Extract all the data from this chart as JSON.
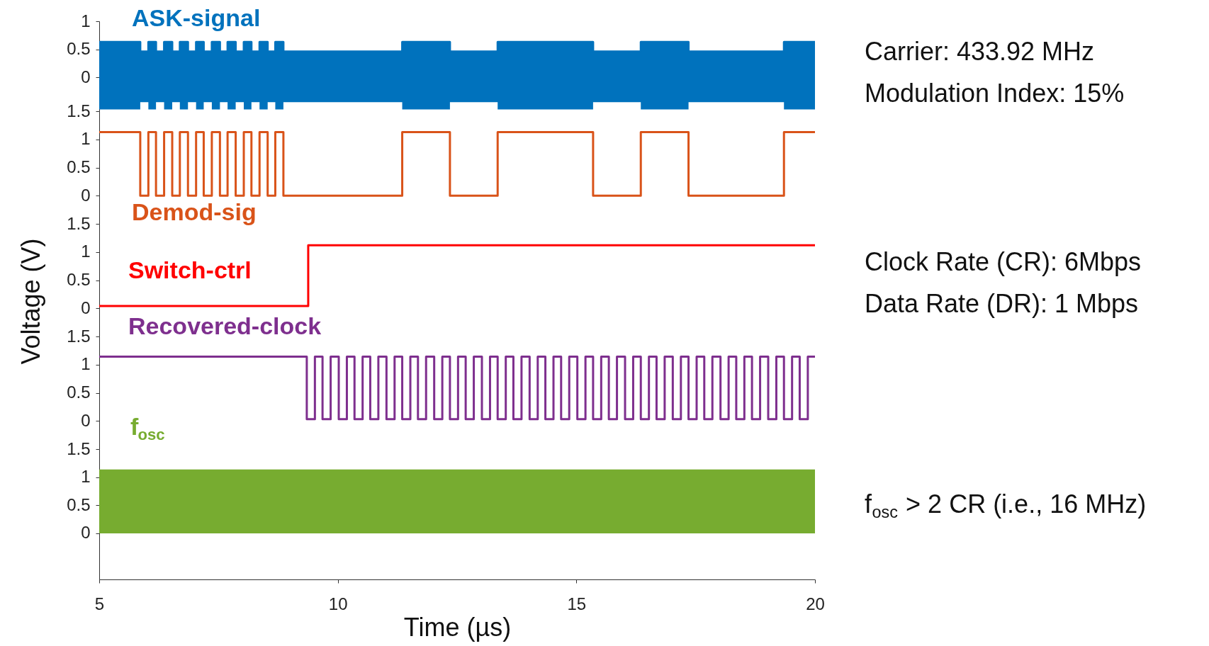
{
  "chart_data": [
    {
      "type": "line",
      "xlim": [
        5,
        20
      ],
      "ylim": [
        -0.6,
        1.0
      ],
      "yticks": [
        0,
        0.5,
        1
      ],
      "tick_labels": "y",
      "series": [
        {
          "name": "ASK-signal",
          "color": "#0072bd",
          "upper": [
            0.63,
            0.63,
            0.46,
            0.46,
            0.63,
            0.63,
            0.46,
            0.46,
            0.63,
            0.63,
            0.46,
            0.46,
            0.63,
            0.63,
            0.46,
            0.46,
            0.63,
            0.63,
            0.46,
            0.46,
            0.63,
            0.63,
            0.46,
            0.46,
            0.63,
            0.63,
            0.46,
            0.46,
            0.63,
            0.63,
            0.46,
            0.46,
            0.63,
            0.63,
            0.46,
            0.46,
            0.63,
            0.63,
            0.46,
            0.46,
            0.63,
            0.63,
            0.46,
            0.46,
            0.63,
            0.63,
            0.46,
            0.46,
            0.63,
            0.63,
            0.46,
            0.46,
            0.63,
            0.63
          ],
          "x": [
            5,
            5.86,
            5.86,
            6.03,
            6.03,
            6.19,
            6.19,
            6.36,
            6.36,
            6.53,
            6.53,
            6.69,
            6.69,
            6.86,
            6.86,
            7.03,
            7.03,
            7.19,
            7.19,
            7.36,
            7.36,
            7.53,
            7.53,
            7.69,
            7.69,
            7.86,
            7.86,
            8.03,
            8.03,
            8.19,
            8.19,
            8.36,
            8.36,
            8.53,
            8.53,
            8.69,
            8.69,
            8.86,
            8.86,
            11.35,
            11.35,
            12.35,
            12.35,
            13.35,
            13.35,
            15.35,
            15.35,
            16.35,
            16.35,
            17.35,
            17.35,
            19.35,
            19.35,
            20
          ],
          "values": [
            0.63,
            0.63,
            0.46,
            0.46,
            0.63,
            0.63,
            0.46,
            0.46,
            0.63,
            0.63,
            0.46,
            0.46,
            0.63,
            0.63,
            0.46,
            0.46,
            0.63,
            0.63,
            0.46,
            0.46,
            0.63,
            0.63,
            0.46,
            0.46,
            0.63,
            0.63,
            0.46,
            0.46,
            0.63,
            0.63,
            0.46,
            0.46,
            0.63,
            0.63,
            0.46,
            0.46,
            0.63,
            0.63,
            0.46,
            0.46,
            0.63,
            0.63,
            0.46,
            0.46,
            0.63,
            0.63,
            0.46,
            0.46,
            0.63,
            0.63,
            0.46,
            0.46,
            0.63,
            0.63
          ],
          "lower": [
            -0.57,
            -0.57,
            -0.44,
            -0.44,
            -0.57,
            -0.57,
            -0.44,
            -0.44,
            -0.57,
            -0.57,
            -0.44,
            -0.44,
            -0.57,
            -0.57,
            -0.44,
            -0.44,
            -0.57,
            -0.57,
            -0.44,
            -0.44,
            -0.57,
            -0.57,
            -0.44,
            -0.44,
            -0.57,
            -0.57,
            -0.44,
            -0.44,
            -0.57,
            -0.57,
            -0.44,
            -0.44,
            -0.57,
            -0.57,
            -0.44,
            -0.44,
            -0.57,
            -0.57,
            -0.44,
            -0.44,
            -0.57,
            -0.57,
            -0.44,
            -0.44,
            -0.57,
            -0.57,
            -0.44,
            -0.44,
            -0.57,
            -0.57,
            -0.44,
            -0.44,
            -0.57,
            -0.57
          ]
        }
      ],
      "annotations": [
        "Carrier: 433.92 MHz",
        "Modulation Index: 15%"
      ]
    },
    {
      "type": "line",
      "xlim": [
        5,
        20
      ],
      "ylim": [
        -0.5,
        1.5
      ],
      "yticks": [
        0,
        0.5,
        1,
        1.5
      ],
      "tick_labels": "y",
      "series": [
        {
          "name": "Demod-sig",
          "color": "#d95319",
          "x": [
            5,
            5.86,
            5.86,
            6.03,
            6.03,
            6.19,
            6.19,
            6.36,
            6.36,
            6.53,
            6.53,
            6.69,
            6.69,
            6.86,
            6.86,
            7.03,
            7.03,
            7.19,
            7.19,
            7.36,
            7.36,
            7.53,
            7.53,
            7.69,
            7.69,
            7.86,
            7.86,
            8.03,
            8.03,
            8.19,
            8.19,
            8.36,
            8.36,
            8.53,
            8.53,
            8.69,
            8.69,
            8.86,
            8.86,
            11.35,
            11.35,
            12.35,
            12.35,
            13.35,
            13.35,
            15.35,
            15.35,
            16.35,
            16.35,
            17.35,
            17.35,
            19.35,
            19.35,
            20
          ],
          "values": [
            1.13,
            1.13,
            0,
            0,
            1.13,
            1.13,
            0,
            0,
            1.13,
            1.13,
            0,
            0,
            1.13,
            1.13,
            0,
            0,
            1.13,
            1.13,
            0,
            0,
            1.13,
            1.13,
            0,
            0,
            1.13,
            1.13,
            0,
            0,
            1.13,
            1.13,
            0,
            0,
            1.13,
            1.13,
            0,
            0,
            1.13,
            1.13,
            0,
            0,
            1.13,
            1.13,
            0,
            0,
            1.13,
            1.13,
            0,
            0,
            1.13,
            1.13,
            0,
            0,
            1.13,
            1.13
          ]
        }
      ]
    },
    {
      "type": "line",
      "xlim": [
        5,
        20
      ],
      "ylim": [
        -0.5,
        1.5
      ],
      "yticks": [
        0,
        0.5,
        1,
        1.5
      ],
      "tick_labels": "y",
      "ylabel": "Voltage (V)",
      "series": [
        {
          "name": "Switch-ctrl",
          "color": "#ff0000",
          "x": [
            5,
            9.38,
            9.38,
            20
          ],
          "values": [
            0.04,
            0.04,
            1.12,
            1.12
          ]
        }
      ],
      "annotations": [
        "Clock Rate (CR): 6Mbps",
        "Data Rate (DR): 1 Mbps"
      ]
    },
    {
      "type": "line",
      "xlim": [
        5,
        20
      ],
      "ylim": [
        -0.5,
        1.5
      ],
      "yticks": [
        0,
        0.5,
        1,
        1.5
      ],
      "tick_labels": "y",
      "series": [
        {
          "name": "Recovered-clock",
          "color": "#7e2f8e",
          "x": [
            5,
            9.35,
            9.35,
            9.52,
            9.52,
            9.68,
            9.68,
            9.85,
            9.85,
            10.02,
            10.02,
            10.19,
            10.19,
            10.35,
            10.35,
            10.52,
            10.52,
            10.68,
            10.68,
            10.85,
            10.85,
            11.02,
            11.02,
            11.19,
            11.19,
            11.35,
            11.35,
            11.52,
            11.52,
            11.68,
            11.68,
            11.85,
            11.85,
            12.02,
            12.02,
            12.19,
            12.19,
            12.35,
            12.35,
            12.52,
            12.52,
            12.68,
            12.68,
            12.85,
            12.85,
            13.02,
            13.02,
            13.19,
            13.19,
            13.35,
            13.35,
            13.52,
            13.52,
            13.68,
            13.68,
            13.85,
            13.85,
            14.02,
            14.02,
            14.19,
            14.19,
            14.35,
            14.35,
            14.52,
            14.52,
            14.68,
            14.68,
            14.85,
            14.85,
            15.02,
            15.02,
            15.19,
            15.19,
            15.35,
            15.35,
            15.52,
            15.52,
            15.68,
            15.68,
            15.85,
            15.85,
            16.02,
            16.02,
            16.19,
            16.19,
            16.35,
            16.35,
            16.52,
            16.52,
            16.68,
            16.68,
            16.85,
            16.85,
            17.02,
            17.02,
            17.19,
            17.19,
            17.35,
            17.35,
            17.52,
            17.52,
            17.68,
            17.68,
            17.85,
            17.85,
            18.02,
            18.02,
            18.19,
            18.19,
            18.35,
            18.35,
            18.52,
            18.52,
            18.68,
            18.68,
            18.85,
            18.85,
            19.02,
            19.02,
            19.19,
            19.19,
            19.35,
            19.35,
            19.52,
            19.52,
            19.68,
            19.68,
            19.85,
            19.85,
            20
          ],
          "values": [
            1.14,
            1.14,
            0.03,
            0.03,
            1.14,
            1.14,
            0.03,
            0.03,
            1.14,
            1.14,
            0.03,
            0.03,
            1.14,
            1.14,
            0.03,
            0.03,
            1.14,
            1.14,
            0.03,
            0.03,
            1.14,
            1.14,
            0.03,
            0.03,
            1.14,
            1.14,
            0.03,
            0.03,
            1.14,
            1.14,
            0.03,
            0.03,
            1.14,
            1.14,
            0.03,
            0.03,
            1.14,
            1.14,
            0.03,
            0.03,
            1.14,
            1.14,
            0.03,
            0.03,
            1.14,
            1.14,
            0.03,
            0.03,
            1.14,
            1.14,
            0.03,
            0.03,
            1.14,
            1.14,
            0.03,
            0.03,
            1.14,
            1.14,
            0.03,
            0.03,
            1.14,
            1.14,
            0.03,
            0.03,
            1.14,
            1.14,
            0.03,
            0.03,
            1.14,
            1.14,
            0.03,
            0.03,
            1.14,
            1.14,
            0.03,
            0.03,
            1.14,
            1.14,
            0.03,
            0.03,
            1.14,
            1.14,
            0.03,
            0.03,
            1.14,
            1.14,
            0.03,
            0.03,
            1.14,
            1.14,
            0.03,
            0.03,
            1.14,
            1.14,
            0.03,
            0.03,
            1.14,
            1.14,
            0.03,
            0.03,
            1.14,
            1.14,
            0.03,
            0.03,
            1.14,
            1.14,
            0.03,
            0.03,
            1.14,
            1.14,
            0.03,
            0.03,
            1.14,
            1.14,
            0.03,
            0.03,
            1.14,
            1.14,
            0.03,
            0.03,
            1.14,
            1.14,
            0.03,
            0.03,
            1.14,
            1.14,
            0.03,
            0.03,
            1.14,
            1.14
          ]
        }
      ]
    },
    {
      "type": "line",
      "xlim": [
        5,
        20
      ],
      "xticks": [
        5,
        10,
        15,
        20
      ],
      "xlabel": "Time (µs)",
      "ylim": [
        -0.82,
        1.5
      ],
      "yticks": [
        0,
        0.5,
        1,
        1.5
      ],
      "series": [
        {
          "name": "f$_{osc}$",
          "color": "#77ac30",
          "x": [
            5,
            20
          ],
          "values": [
            1.12,
            1.12
          ],
          "upper": [
            1.12,
            1.12
          ],
          "lower": [
            0,
            0
          ]
        }
      ],
      "annotations": [
        "f$_{osc}$ > 2 CR (i.e., 16 MHz)"
      ]
    }
  ]
}
